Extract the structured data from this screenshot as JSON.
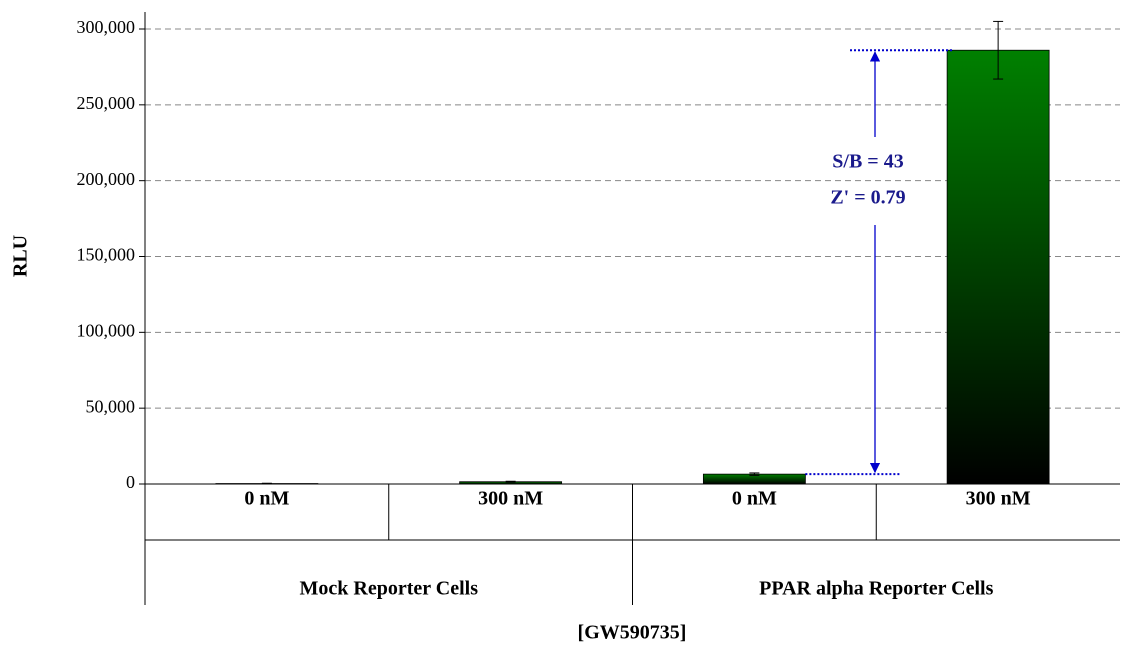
{
  "chart_data": {
    "type": "bar",
    "y_label": "RLU",
    "x_label": "[GW590735]",
    "categories": [
      "0 nM",
      "300 nM",
      "0 nM",
      "300 nM"
    ],
    "group_labels": [
      "Mock Reporter Cells",
      "PPAR alpha Reporter Cells"
    ],
    "values": [
      300,
      1500,
      6500,
      286000
    ],
    "errors": [
      200,
      300,
      800,
      19000
    ],
    "color": "#008000",
    "ylim": [
      0,
      300000
    ],
    "yticks": [
      0,
      {
        "value": 50000,
        "label": "50,000"
      },
      {
        "value": 100000,
        "label": "100,000"
      },
      {
        "value": 150000,
        "label": "150,000"
      },
      {
        "value": 200000,
        "label": "200,000"
      },
      {
        "value": 250000,
        "label": "250,000"
      },
      {
        "value": 300000,
        "label": "300,000"
      }
    ],
    "grid": true,
    "annotations": [
      "S/B = 43",
      "Z' = 0.79"
    ]
  }
}
